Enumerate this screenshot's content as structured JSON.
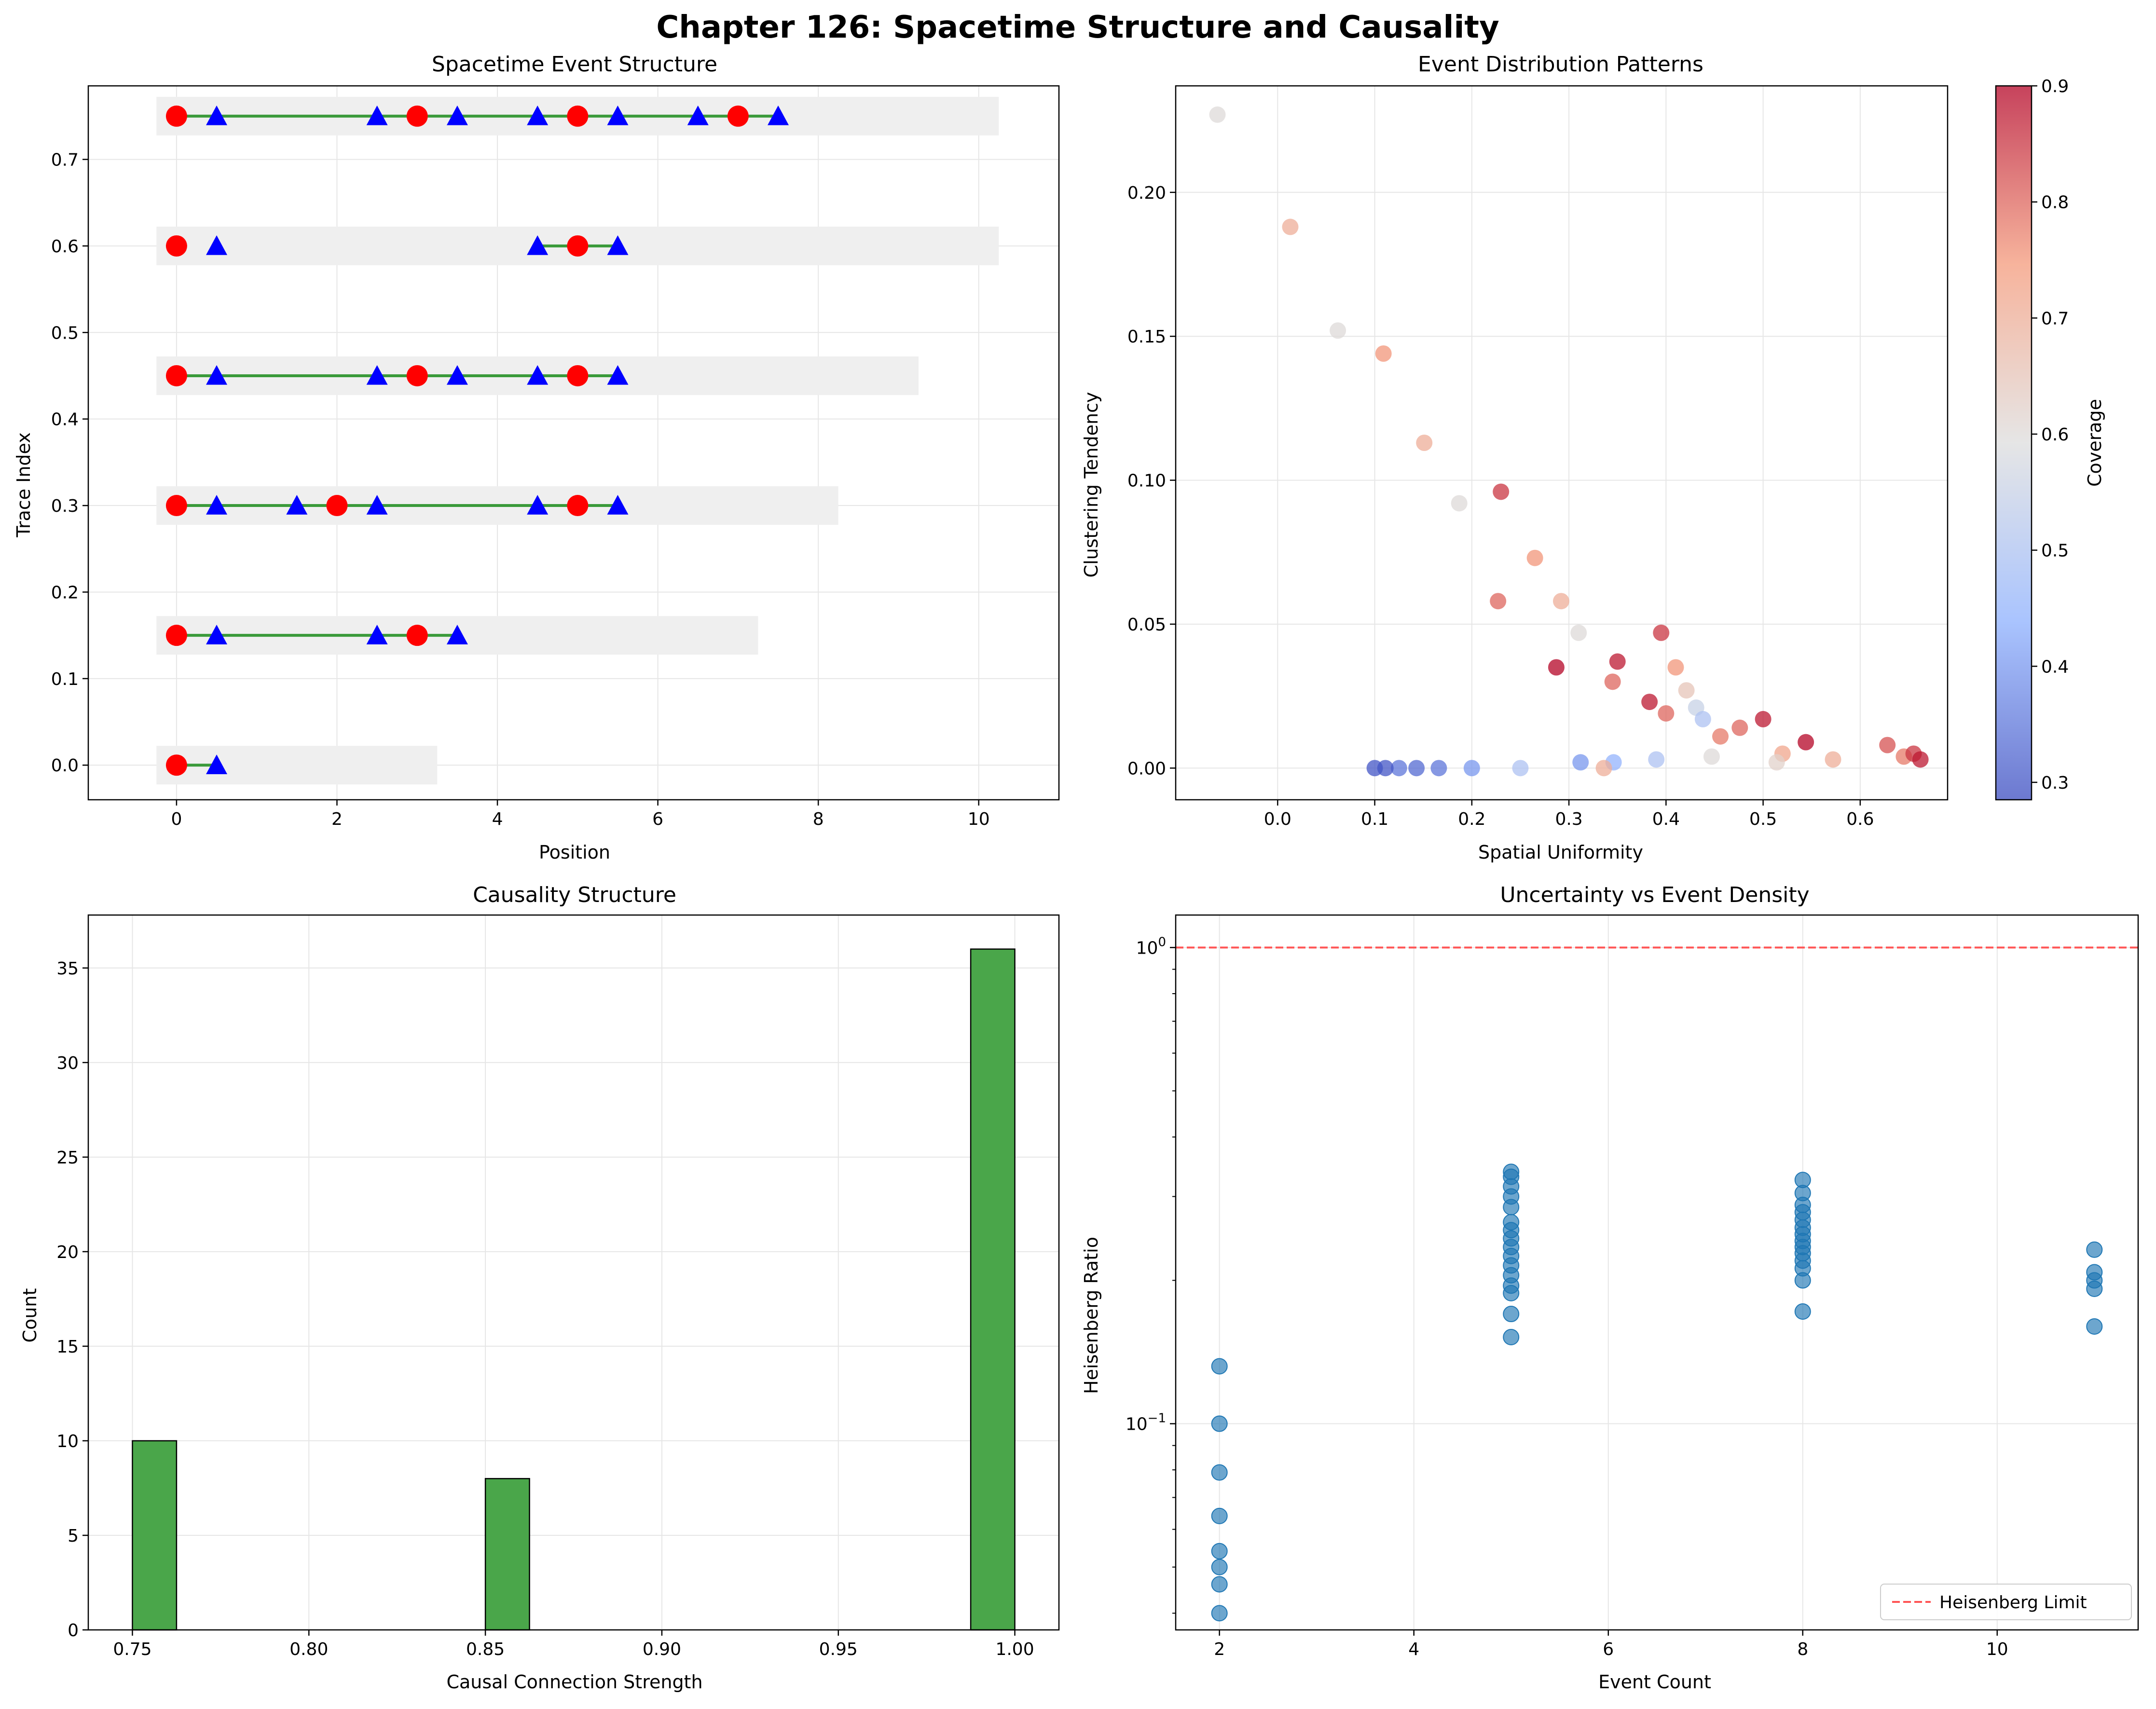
{
  "figure": {
    "suptitle": "Chapter 126: Spacetime Structure and Causality"
  },
  "chart_data": [
    {
      "id": "ax1",
      "type": "scatter",
      "title": "Spacetime Event Structure",
      "xlabel": "Position",
      "ylabel": "Trace Index",
      "xlim": [
        -1.1,
        11.0
      ],
      "ylim": [
        -0.04,
        0.785
      ],
      "xticks": [
        0,
        2,
        4,
        6,
        8,
        10
      ],
      "yticks": [
        0.0,
        0.1,
        0.2,
        0.3,
        0.4,
        0.5,
        0.6,
        0.7
      ],
      "grid": true,
      "colors": {
        "band": "#efefef",
        "line": "#3a9a3a",
        "circle": "#ff0000",
        "triangle": "#0000ff"
      },
      "traces": [
        {
          "y": 0.0,
          "band": [
            -0.25,
            3.25
          ],
          "line": [
            0,
            0.5
          ],
          "circles": [
            0
          ],
          "triangles": [
            0.5
          ]
        },
        {
          "y": 0.15,
          "band": [
            -0.25,
            7.25
          ],
          "line": [
            0,
            3.5
          ],
          "circles": [
            0,
            3
          ],
          "triangles": [
            0.5,
            2.5,
            3.5
          ]
        },
        {
          "y": 0.3,
          "band": [
            -0.25,
            8.25
          ],
          "line": [
            0,
            5.5
          ],
          "circles": [
            0,
            2,
            5
          ],
          "triangles": [
            0.5,
            1.5,
            2.5,
            4.5,
            5.5
          ]
        },
        {
          "y": 0.45,
          "band": [
            -0.25,
            9.25
          ],
          "line": [
            0,
            5.5
          ],
          "circles": [
            0,
            3,
            5
          ],
          "triangles": [
            0.5,
            2.5,
            3.5,
            4.5,
            5.5
          ]
        },
        {
          "y": 0.6,
          "band": [
            -0.25,
            10.25
          ],
          "line": [
            4.5,
            5.5
          ],
          "circles": [
            0,
            5
          ],
          "triangles": [
            0.5,
            4.5,
            5.5
          ]
        },
        {
          "y": 0.75,
          "band": [
            -0.25,
            10.25
          ],
          "line": [
            0,
            7.5
          ],
          "circles": [
            0,
            3,
            5,
            7
          ],
          "triangles": [
            0.5,
            2.5,
            3.5,
            4.5,
            5.5,
            6.5,
            7.5
          ]
        }
      ]
    },
    {
      "id": "ax2",
      "type": "scatter",
      "title": "Event Distribution Patterns",
      "xlabel": "Spatial Uniformity",
      "ylabel": "Clustering Tendency",
      "xlim": [
        -0.105,
        0.69
      ],
      "ylim": [
        -0.011,
        0.237
      ],
      "xticks": [
        0.0,
        0.1,
        0.2,
        0.3,
        0.4,
        0.5,
        0.6
      ],
      "yticks": [
        0.0,
        0.05,
        0.1,
        0.15,
        0.2
      ],
      "grid": true,
      "colorbar": {
        "label": "Coverage",
        "cmap": "coolwarm",
        "range": [
          0.285,
          0.9
        ],
        "ticks": [
          0.3,
          0.4,
          0.5,
          0.6,
          0.7,
          0.8,
          0.9
        ]
      },
      "points": [
        {
          "x": -0.062,
          "y": 0.227,
          "c": 0.6
        },
        {
          "x": 0.013,
          "y": 0.188,
          "c": 0.7
        },
        {
          "x": 0.062,
          "y": 0.152,
          "c": 0.6
        },
        {
          "x": 0.109,
          "y": 0.144,
          "c": 0.75
        },
        {
          "x": 0.151,
          "y": 0.113,
          "c": 0.7
        },
        {
          "x": 0.187,
          "y": 0.092,
          "c": 0.6
        },
        {
          "x": 0.23,
          "y": 0.096,
          "c": 0.85
        },
        {
          "x": 0.227,
          "y": 0.058,
          "c": 0.8
        },
        {
          "x": 0.265,
          "y": 0.073,
          "c": 0.75
        },
        {
          "x": 0.292,
          "y": 0.058,
          "c": 0.7
        },
        {
          "x": 0.31,
          "y": 0.047,
          "c": 0.6
        },
        {
          "x": 0.287,
          "y": 0.035,
          "c": 0.9
        },
        {
          "x": 0.35,
          "y": 0.037,
          "c": 0.88
        },
        {
          "x": 0.345,
          "y": 0.03,
          "c": 0.8
        },
        {
          "x": 0.383,
          "y": 0.023,
          "c": 0.88
        },
        {
          "x": 0.395,
          "y": 0.047,
          "c": 0.85
        },
        {
          "x": 0.4,
          "y": 0.019,
          "c": 0.8
        },
        {
          "x": 0.41,
          "y": 0.035,
          "c": 0.75
        },
        {
          "x": 0.421,
          "y": 0.027,
          "c": 0.65
        },
        {
          "x": 0.431,
          "y": 0.021,
          "c": 0.55
        },
        {
          "x": 0.438,
          "y": 0.017,
          "c": 0.5
        },
        {
          "x": 0.456,
          "y": 0.011,
          "c": 0.78
        },
        {
          "x": 0.476,
          "y": 0.014,
          "c": 0.8
        },
        {
          "x": 0.5,
          "y": 0.017,
          "c": 0.88
        },
        {
          "x": 0.544,
          "y": 0.009,
          "c": 0.9
        },
        {
          "x": 0.52,
          "y": 0.005,
          "c": 0.72
        },
        {
          "x": 0.628,
          "y": 0.008,
          "c": 0.82
        },
        {
          "x": 0.645,
          "y": 0.004,
          "c": 0.78
        },
        {
          "x": 0.655,
          "y": 0.005,
          "c": 0.85
        },
        {
          "x": 0.662,
          "y": 0.003,
          "c": 0.88
        },
        {
          "x": 0.572,
          "y": 0.003,
          "c": 0.7
        },
        {
          "x": 0.514,
          "y": 0.002,
          "c": 0.62
        },
        {
          "x": 0.447,
          "y": 0.004,
          "c": 0.6
        },
        {
          "x": 0.39,
          "y": 0.003,
          "c": 0.5
        },
        {
          "x": 0.346,
          "y": 0.002,
          "c": 0.45
        },
        {
          "x": 0.336,
          "y": 0.0,
          "c": 0.7
        },
        {
          "x": 0.312,
          "y": 0.002,
          "c": 0.4
        },
        {
          "x": 0.25,
          "y": 0.0,
          "c": 0.5
        },
        {
          "x": 0.2,
          "y": 0.0,
          "c": 0.4
        },
        {
          "x": 0.166,
          "y": 0.0,
          "c": 0.35
        },
        {
          "x": 0.143,
          "y": 0.0,
          "c": 0.33
        },
        {
          "x": 0.125,
          "y": 0.0,
          "c": 0.35
        },
        {
          "x": 0.111,
          "y": 0.0,
          "c": 0.3
        },
        {
          "x": 0.1,
          "y": 0.0,
          "c": 0.3
        }
      ]
    },
    {
      "id": "ax3",
      "type": "bar",
      "title": "Causality Structure",
      "xlabel": "Causal Connection Strength",
      "ylabel": "Count",
      "xlim": [
        0.7375,
        1.0125
      ],
      "ylim": [
        0,
        37.8
      ],
      "xticks": [
        0.75,
        0.8,
        0.85,
        0.9,
        0.95,
        1.0
      ],
      "yticks": [
        0,
        5,
        10,
        15,
        20,
        25,
        30,
        35
      ],
      "grid": true,
      "color": "#4aa64a",
      "bins": [
        {
          "left": 0.75,
          "right": 0.7625,
          "count": 10
        },
        {
          "left": 0.85,
          "right": 0.8625,
          "count": 8
        },
        {
          "left": 0.9875,
          "right": 1.0,
          "count": 36
        }
      ]
    },
    {
      "id": "ax4",
      "type": "scatter",
      "title": "Uncertainty vs Event Density",
      "xlabel": "Event Count",
      "ylabel": "Heisenberg Ratio",
      "xscale": "linear",
      "yscale": "log",
      "xlim": [
        1.55,
        11.45
      ],
      "ylim": [
        0.0369,
        1.17
      ],
      "xticks": [
        2,
        4,
        6,
        8,
        10
      ],
      "yticks_major": [
        {
          "value": 0.1,
          "base": "10",
          "exp": "−1"
        },
        {
          "value": 1.0,
          "base": "10",
          "exp": "0"
        }
      ],
      "grid": true,
      "reference_line": {
        "y": 1.0,
        "label": "Heisenberg Limit",
        "color": "#ff5555"
      },
      "legend": "lower right",
      "color": "#1f77b4",
      "points": [
        {
          "x": 2,
          "y": 0.132
        },
        {
          "x": 2,
          "y": 0.1
        },
        {
          "x": 2,
          "y": 0.079
        },
        {
          "x": 2,
          "y": 0.064
        },
        {
          "x": 2,
          "y": 0.054
        },
        {
          "x": 2,
          "y": 0.05
        },
        {
          "x": 2,
          "y": 0.046
        },
        {
          "x": 2,
          "y": 0.04
        },
        {
          "x": 5,
          "y": 0.338
        },
        {
          "x": 5,
          "y": 0.33
        },
        {
          "x": 5,
          "y": 0.315
        },
        {
          "x": 5,
          "y": 0.3
        },
        {
          "x": 5,
          "y": 0.285
        },
        {
          "x": 5,
          "y": 0.265
        },
        {
          "x": 5,
          "y": 0.255
        },
        {
          "x": 5,
          "y": 0.245
        },
        {
          "x": 5,
          "y": 0.235
        },
        {
          "x": 5,
          "y": 0.225
        },
        {
          "x": 5,
          "y": 0.215
        },
        {
          "x": 5,
          "y": 0.205
        },
        {
          "x": 5,
          "y": 0.195
        },
        {
          "x": 5,
          "y": 0.188
        },
        {
          "x": 5,
          "y": 0.17
        },
        {
          "x": 5,
          "y": 0.152
        },
        {
          "x": 8,
          "y": 0.325
        },
        {
          "x": 8,
          "y": 0.305
        },
        {
          "x": 8,
          "y": 0.288
        },
        {
          "x": 8,
          "y": 0.278
        },
        {
          "x": 8,
          "y": 0.268
        },
        {
          "x": 8,
          "y": 0.258
        },
        {
          "x": 8,
          "y": 0.25
        },
        {
          "x": 8,
          "y": 0.242
        },
        {
          "x": 8,
          "y": 0.235
        },
        {
          "x": 8,
          "y": 0.228
        },
        {
          "x": 8,
          "y": 0.22
        },
        {
          "x": 8,
          "y": 0.212
        },
        {
          "x": 8,
          "y": 0.2
        },
        {
          "x": 8,
          "y": 0.172
        },
        {
          "x": 11,
          "y": 0.232
        },
        {
          "x": 11,
          "y": 0.208
        },
        {
          "x": 11,
          "y": 0.2
        },
        {
          "x": 11,
          "y": 0.192
        },
        {
          "x": 11,
          "y": 0.16
        }
      ]
    }
  ]
}
